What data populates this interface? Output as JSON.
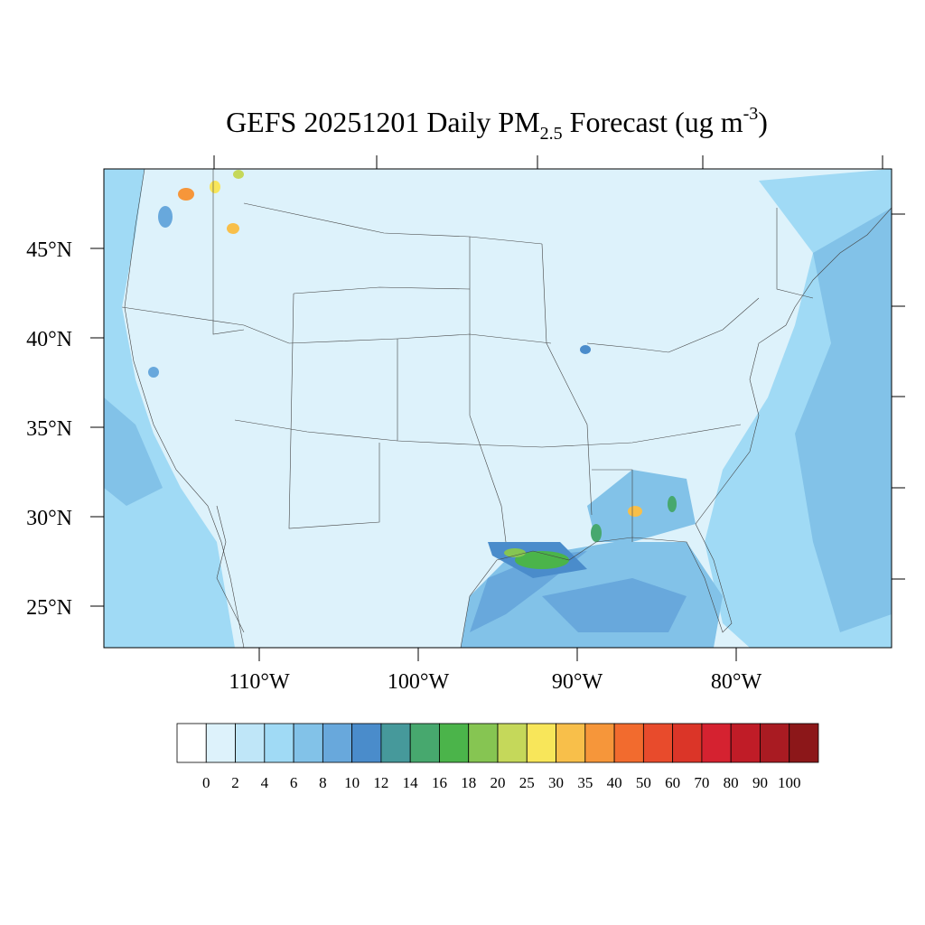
{
  "title": {
    "lead": "GEFS 20251201 Daily PM",
    "subscript": "2.5",
    "middle": " Forecast (ug m",
    "superscript": "-3",
    "end": ")"
  },
  "lat_labels": [
    "45°N",
    "40°N",
    "35°N",
    "30°N",
    "25°N"
  ],
  "lon_labels": [
    "110°W",
    "100°W",
    "90°W",
    "80°W"
  ],
  "colorbar": {
    "levels": [
      0,
      2,
      4,
      6,
      8,
      10,
      12,
      14,
      16,
      18,
      20,
      25,
      30,
      35,
      40,
      50,
      60,
      70,
      80,
      90,
      100
    ],
    "colors": [
      "#ffffff",
      "#ddf2fb",
      "#bfe6f8",
      "#a0daf5",
      "#82c2e8",
      "#68a8dc",
      "#4a8ccb",
      "#46999b",
      "#47a86e",
      "#4bb44a",
      "#86c552",
      "#c5d85a",
      "#f8e65a",
      "#f8bf4a",
      "#f6963a",
      "#f26b2e",
      "#e84b2c",
      "#db3528",
      "#d52230",
      "#c01c27",
      "#a91b22",
      "#8c1719"
    ]
  }
}
